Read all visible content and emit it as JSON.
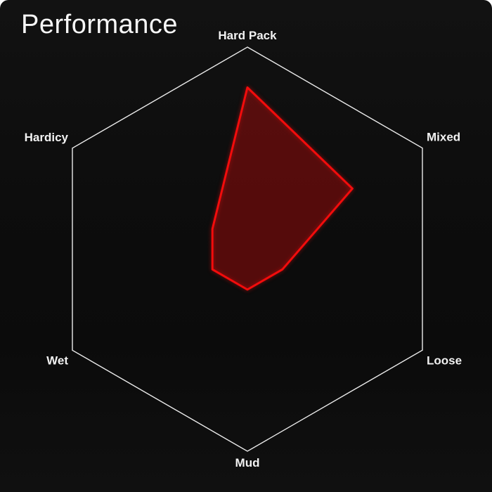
{
  "header": {
    "title": "Performance"
  },
  "chart_data": {
    "type": "radar",
    "title": "Performance",
    "categories": [
      "Hard Pack",
      "Mixed",
      "Loose",
      "Mud",
      "Wet",
      "Hardicy"
    ],
    "values": [
      0.8,
      0.6,
      0.2,
      0.2,
      0.2,
      0.2
    ],
    "scale_min": 0,
    "scale_max": 1,
    "grid": "single-outer-hexagon",
    "legend": false,
    "colors": {
      "series_stroke": "#f20c0c",
      "series_fill": "rgba(242,12,12,0.22)",
      "grid_stroke": "#ebebeb",
      "label_text": "#f2f2f2",
      "background": "#0d0d0d",
      "title_text": "#f7f7f7"
    }
  }
}
